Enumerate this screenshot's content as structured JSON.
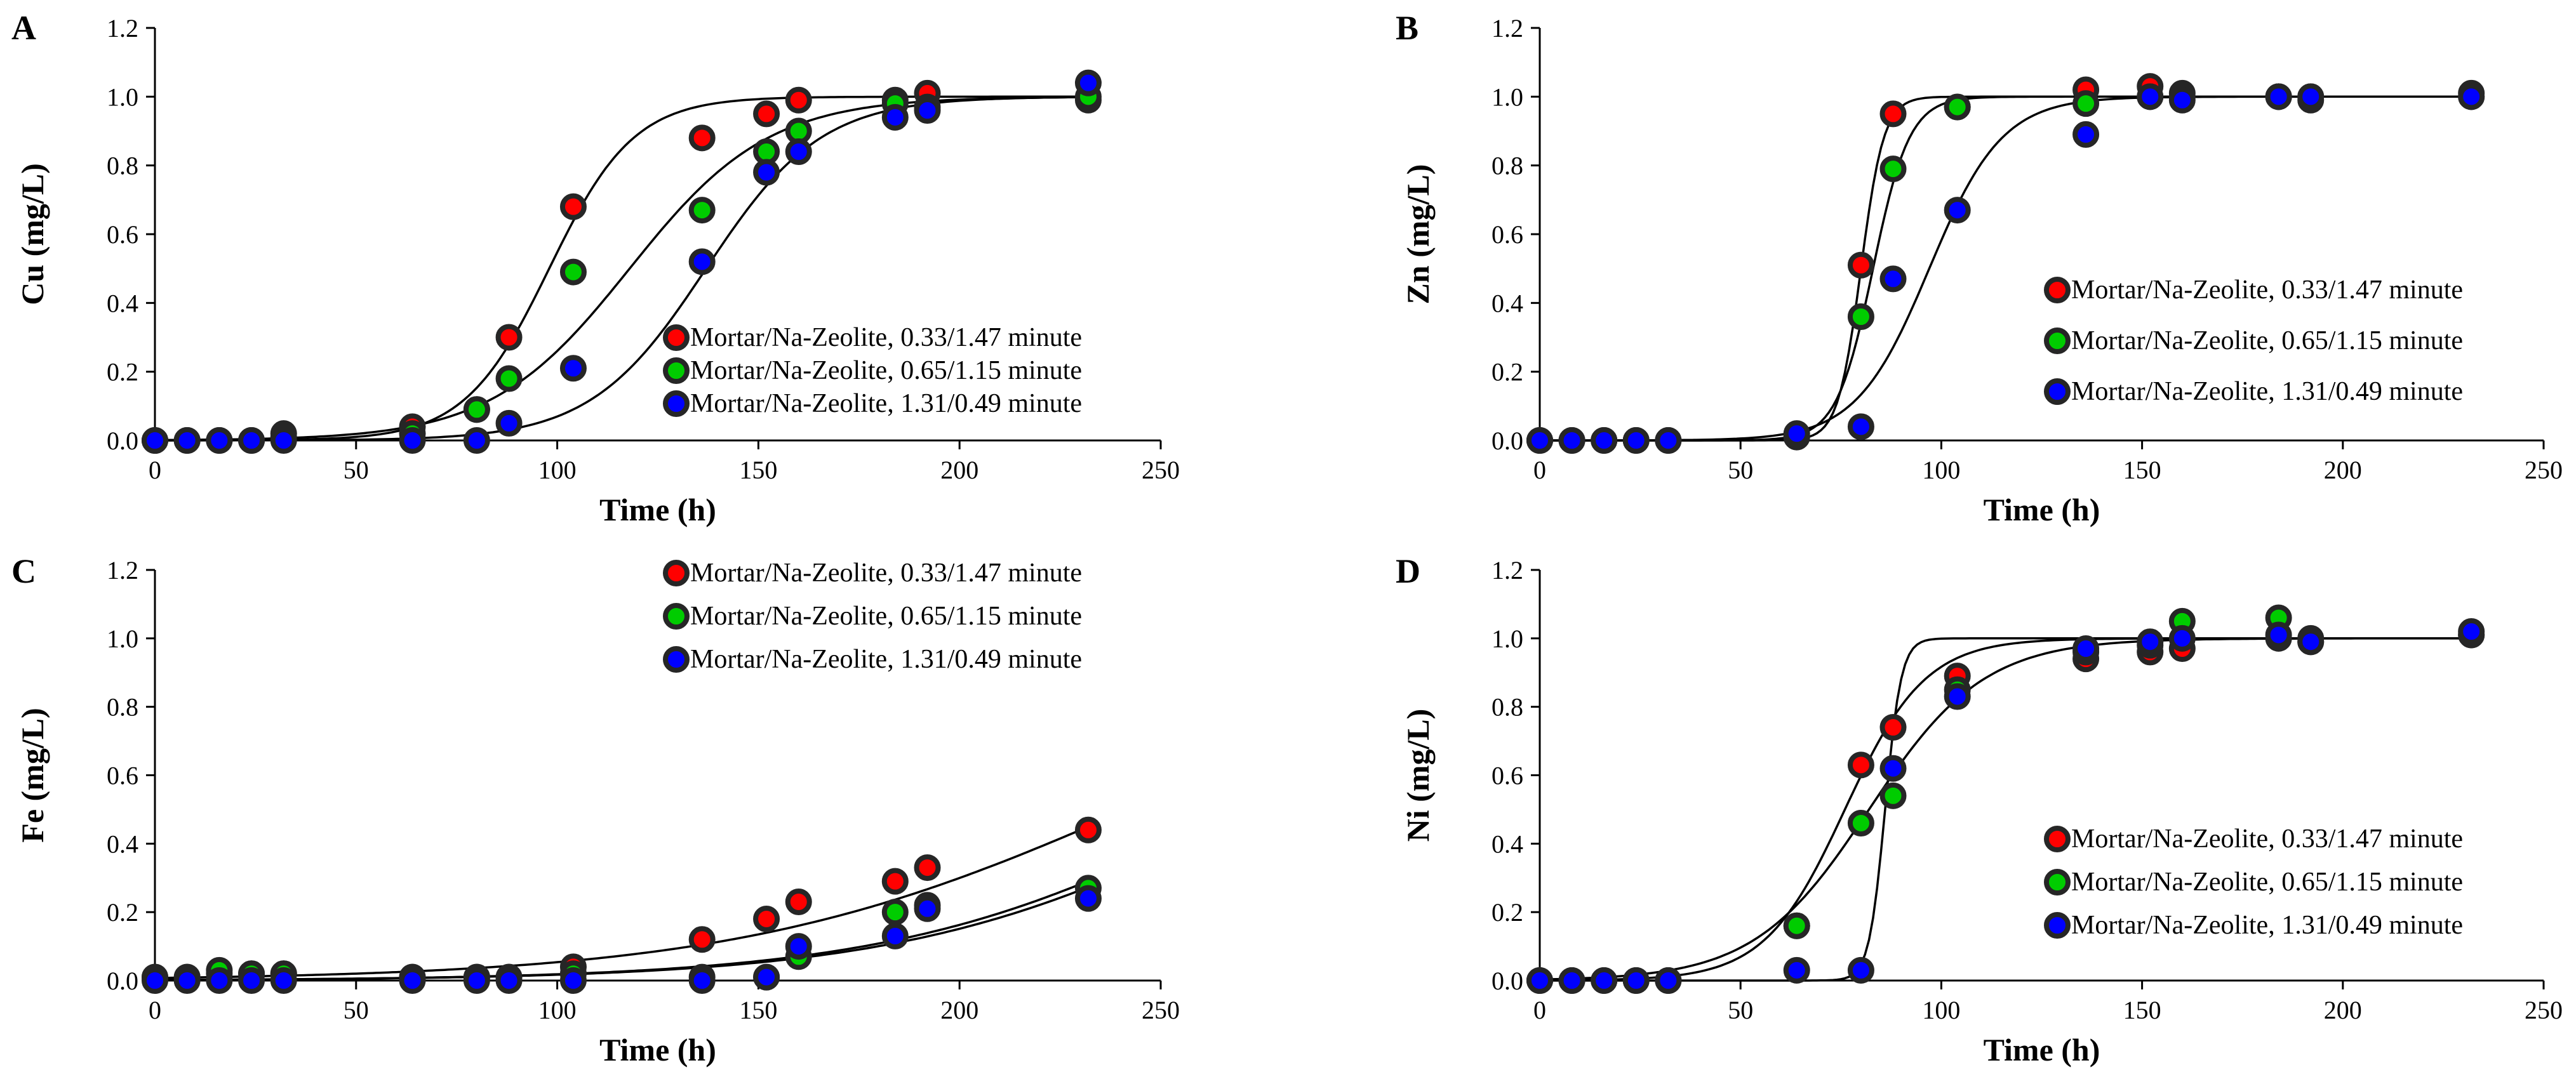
{
  "chart_data": [
    {
      "type": "scatter",
      "panel_label": "A",
      "xlabel": "Time (h)",
      "ylabel": "Cu (mg/L)",
      "xlim": [
        0,
        250
      ],
      "ylim": [
        0,
        1.2
      ],
      "xticks": [
        "0",
        "50",
        "100",
        "150",
        "200",
        "250"
      ],
      "yticks": [
        "0.0",
        "0.2",
        "0.4",
        "0.6",
        "0.8",
        "1.0",
        "1.2"
      ],
      "legend_position": "bottom-right",
      "grid": false,
      "x": [
        0,
        8,
        16,
        24,
        32,
        64,
        80,
        88,
        104,
        136,
        152,
        160,
        184,
        192,
        232
      ],
      "series": [
        {
          "name": "Mortar/Na-Zeolite, 0.33/1.47 minute",
          "color": "#ff0000",
          "values": [
            0,
            0,
            0,
            0,
            0.02,
            0.04,
            0.09,
            0.3,
            0.68,
            0.88,
            0.95,
            0.99,
            0.99,
            1.01,
            0.99
          ],
          "fit": {
            "x0": 98,
            "k": 0.095
          }
        },
        {
          "name": "Mortar/Na-Zeolite, 0.65/1.15 minute",
          "color": "#00cc00",
          "values": [
            0,
            0,
            0,
            0,
            0.01,
            0.02,
            0.09,
            0.18,
            0.49,
            0.67,
            0.84,
            0.9,
            0.98,
            0.97,
            1.0
          ],
          "fit": {
            "x0": 118,
            "k": 0.058
          }
        },
        {
          "name": "Mortar/Na-Zeolite, 1.31/0.49 minute",
          "color": "#0000ff",
          "values": [
            0,
            0,
            0,
            0,
            0,
            0,
            0,
            0.05,
            0.21,
            0.52,
            0.78,
            0.84,
            0.94,
            0.96,
            1.04
          ],
          "fit": {
            "x0": 137,
            "k": 0.07
          }
        }
      ]
    },
    {
      "type": "scatter",
      "panel_label": "B",
      "xlabel": "Time (h)",
      "ylabel": "Zn (mg/L)",
      "xlim": [
        0,
        250
      ],
      "ylim": [
        0,
        1.2
      ],
      "xticks": [
        "0",
        "50",
        "100",
        "150",
        "200",
        "250"
      ],
      "yticks": [
        "0.0",
        "0.2",
        "0.4",
        "0.6",
        "0.8",
        "1.0",
        "1.2"
      ],
      "legend_position": "right",
      "grid": false,
      "x": [
        0,
        8,
        16,
        24,
        32,
        64,
        80,
        88,
        104,
        136,
        152,
        160,
        184,
        192,
        232
      ],
      "series": [
        {
          "name": "Mortar/Na-Zeolite, 0.33/1.47 minute",
          "color": "#ff0000",
          "values": [
            0,
            0,
            0,
            0,
            0,
            0.01,
            0.51,
            0.95,
            0.97,
            1.02,
            1.03,
            1.01,
            1.0,
            1.0,
            1.01
          ],
          "fit": {
            "x0": 80,
            "k": 0.35
          }
        },
        {
          "name": "Mortar/Na-Zeolite, 0.65/1.15 minute",
          "color": "#00cc00",
          "values": [
            0,
            0,
            0,
            0,
            0,
            0.01,
            0.36,
            0.79,
            0.97,
            0.98,
            1.0,
            1.0,
            1.0,
            0.99,
            1.0
          ],
          "fit": {
            "x0": 83,
            "k": 0.22
          }
        },
        {
          "name": "Mortar/Na-Zeolite, 1.31/0.49 minute",
          "color": "#0000ff",
          "values": [
            0,
            0,
            0,
            0,
            0,
            0.02,
            0.04,
            0.47,
            0.67,
            0.89,
            1.0,
            0.99,
            1.0,
            1.0,
            1.0
          ],
          "fit": {
            "x0": 97,
            "k": 0.11
          }
        }
      ]
    },
    {
      "type": "scatter",
      "panel_label": "C",
      "xlabel": "Time (h)",
      "ylabel": "Fe (mg/L)",
      "xlim": [
        0,
        250
      ],
      "ylim": [
        0,
        1.2
      ],
      "xticks": [
        "0",
        "50",
        "100",
        "150",
        "200",
        "250"
      ],
      "yticks": [
        "0.0",
        "0.2",
        "0.4",
        "0.6",
        "0.8",
        "1.0",
        "1.2"
      ],
      "legend_position": "top-right",
      "grid": false,
      "x": [
        0,
        8,
        16,
        24,
        32,
        64,
        80,
        88,
        104,
        136,
        152,
        160,
        184,
        192,
        232
      ],
      "series": [
        {
          "name": "Mortar/Na-Zeolite, 0.33/1.47 minute",
          "color": "#ff0000",
          "values": [
            0.01,
            0.01,
            0.02,
            0.02,
            0.02,
            0.01,
            0.01,
            0.01,
            0.04,
            0.12,
            0.18,
            0.23,
            0.29,
            0.33,
            0.44
          ],
          "fit": {
            "x0": 242,
            "k": 0.0202
          }
        },
        {
          "name": "Mortar/Na-Zeolite, 0.65/1.15 minute",
          "color": "#00cc00",
          "values": [
            0.01,
            0.01,
            0.03,
            0.02,
            0.02,
            0.01,
            0.01,
            0.01,
            0.02,
            0.01,
            0.01,
            0.07,
            0.2,
            0.22,
            0.27
          ],
          "fit": {
            "x0": 270,
            "k": 0.0234
          }
        },
        {
          "name": "Mortar/Na-Zeolite, 1.31/0.49 minute",
          "color": "#0000ff",
          "values": [
            0,
            0,
            0,
            0,
            0,
            0,
            0,
            0,
            0,
            0,
            0.01,
            0.1,
            0.13,
            0.21,
            0.24
          ],
          "fit": {
            "x0": 274,
            "k": 0.0233
          }
        }
      ]
    },
    {
      "type": "scatter",
      "panel_label": "D",
      "xlabel": "Time (h)",
      "ylabel": "Ni (mg/L)",
      "xlim": [
        0,
        250
      ],
      "ylim": [
        0,
        1.2
      ],
      "xticks": [
        "0",
        "50",
        "100",
        "150",
        "200",
        "250"
      ],
      "yticks": [
        "0.0",
        "0.2",
        "0.4",
        "0.6",
        "0.8",
        "1.0",
        "1.2"
      ],
      "legend_position": "bottom-right",
      "grid": false,
      "x": [
        0,
        8,
        16,
        24,
        32,
        64,
        80,
        88,
        104,
        136,
        152,
        160,
        184,
        192,
        232
      ],
      "series": [
        {
          "name": "Mortar/Na-Zeolite, 0.33/1.47 minute",
          "color": "#ff0000",
          "values": [
            0,
            0,
            0,
            0,
            0,
            0.16,
            0.63,
            0.74,
            0.89,
            0.94,
            0.96,
            0.97,
            1.0,
            0.99,
            1.01
          ],
          "fit": {
            "x0": 76,
            "k": 0.1
          }
        },
        {
          "name": "Mortar/Na-Zeolite, 0.65/1.15 minute",
          "color": "#00cc00",
          "values": [
            0,
            0,
            0,
            0,
            0,
            0.16,
            0.46,
            0.54,
            0.85,
            0.96,
            0.98,
            1.05,
            1.06,
            1.0,
            1.01
          ],
          "fit": {
            "x0": 82,
            "k": 0.07
          }
        },
        {
          "name": "Mortar/Na-Zeolite, 1.31/0.49 minute",
          "color": "#0000ff",
          "values": [
            0,
            0,
            0,
            0,
            0,
            0.03,
            0.03,
            0.62,
            0.83,
            0.97,
            0.99,
            1.0,
            1.01,
            0.99,
            1.02
          ],
          "fit": {
            "x0": 86,
            "k": 0.5
          }
        }
      ]
    }
  ]
}
